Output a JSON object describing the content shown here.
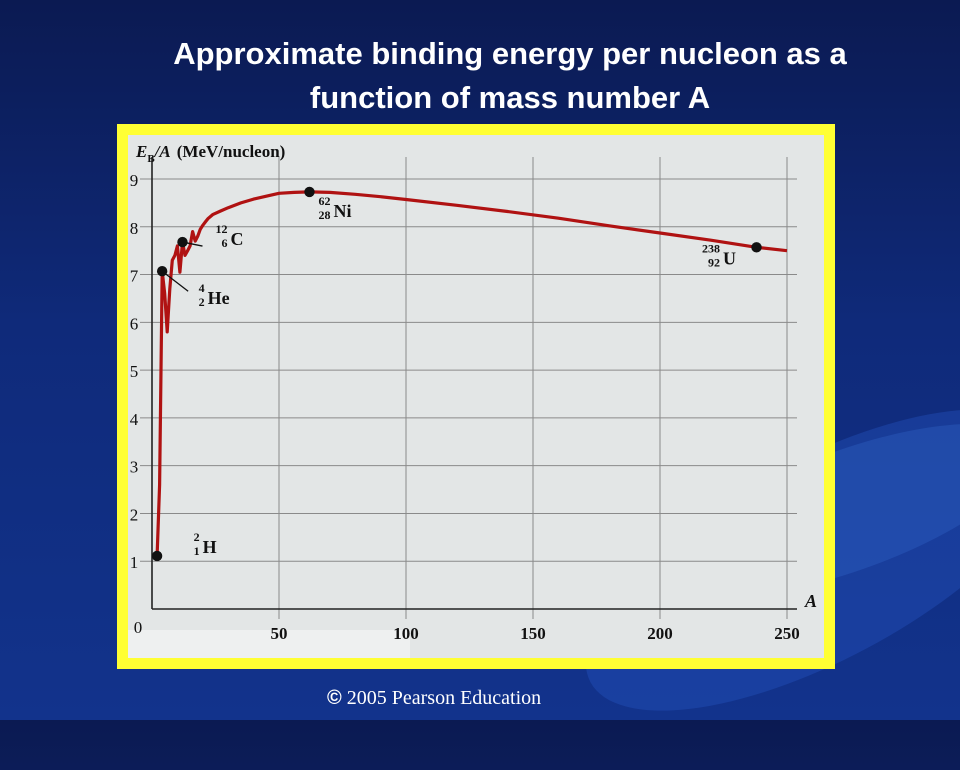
{
  "slide": {
    "title_line1": "Approximate binding energy per nucleon as a",
    "title_line2": "function of mass number A",
    "copyright_symbol": "©",
    "copyright_text": "2005 Pearson Education"
  },
  "chart_data": {
    "type": "line",
    "title": "",
    "ylabel": "E_B/A (MeV/nucleon)",
    "ylabel_parts": {
      "symbol": "E",
      "sub": "B",
      "rest": "/A",
      "unit": "(MeV/nucleon)"
    },
    "xlabel": "A",
    "xlim": [
      0,
      250
    ],
    "ylim": [
      0,
      9
    ],
    "x_ticks": [
      50,
      100,
      150,
      200,
      250
    ],
    "y_ticks": [
      1,
      2,
      3,
      4,
      5,
      6,
      7,
      8,
      9
    ],
    "origin_label": "0",
    "grid": true,
    "line_color": "#b01212",
    "series": [
      {
        "x": [
          2,
          3,
          4,
          5,
          6,
          7,
          8,
          9,
          10,
          11,
          12,
          13,
          14,
          15,
          16,
          17,
          18,
          19,
          20,
          21,
          22,
          24,
          27,
          30,
          35,
          40,
          45,
          50,
          56,
          62,
          70,
          80,
          90,
          100,
          120,
          140,
          160,
          180,
          200,
          220,
          238,
          250
        ],
        "y": [
          1.11,
          2.6,
          7.07,
          6.6,
          5.8,
          6.7,
          7.3,
          7.4,
          7.6,
          7.05,
          7.68,
          7.4,
          7.5,
          7.6,
          7.9,
          7.7,
          7.8,
          7.95,
          8.03,
          8.1,
          8.17,
          8.26,
          8.33,
          8.4,
          8.5,
          8.58,
          8.64,
          8.7,
          8.72,
          8.73,
          8.72,
          8.68,
          8.63,
          8.57,
          8.45,
          8.32,
          8.18,
          8.02,
          7.87,
          7.72,
          7.57,
          7.5
        ]
      }
    ],
    "labeled_points": [
      {
        "x": 2,
        "y": 1.11,
        "mass": "2",
        "atomic": "1",
        "symbol": "H"
      },
      {
        "x": 4,
        "y": 7.07,
        "mass": "4",
        "atomic": "2",
        "symbol": "He"
      },
      {
        "x": 12,
        "y": 7.68,
        "mass": "12",
        "atomic": "6",
        "symbol": "C"
      },
      {
        "x": 62,
        "y": 8.73,
        "mass": "62",
        "atomic": "28",
        "symbol": "Ni"
      },
      {
        "x": 238,
        "y": 7.57,
        "mass": "238",
        "atomic": "92",
        "symbol": "U"
      }
    ]
  }
}
